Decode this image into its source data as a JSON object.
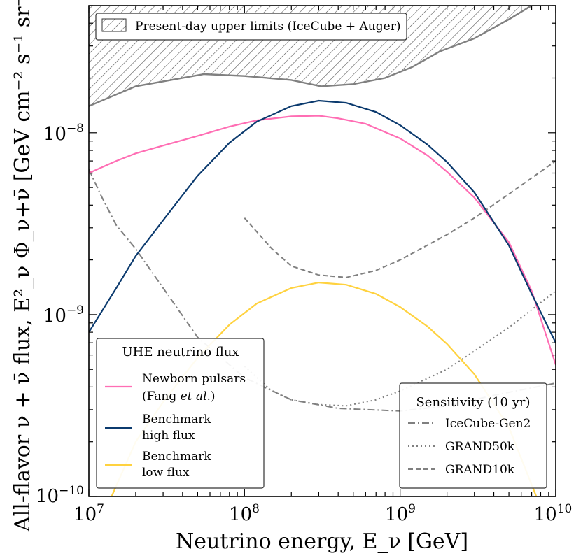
{
  "chart_data": {
    "type": "line",
    "x_scale": "log",
    "y_scale": "log",
    "xlim": [
      10000000,
      10000000000
    ],
    "ylim": [
      1e-10,
      5e-08
    ],
    "xlabel": "Neutrino energy, E_ν [GeV]",
    "ylabel": "All-flavor ν + ν̄ flux, E²_ν Φ_ν+ν̄ [GeV cm⁻² s⁻¹ sr⁻¹]",
    "x_ticks": [
      {
        "value": 10000000,
        "base": "10",
        "exp": "7"
      },
      {
        "value": 100000000,
        "base": "10",
        "exp": "8"
      },
      {
        "value": 1000000000,
        "base": "10",
        "exp": "9"
      },
      {
        "value": 10000000000,
        "base": "10",
        "exp": "10"
      }
    ],
    "y_ticks": [
      {
        "value": 1e-10,
        "base": "10",
        "exp": "−10"
      },
      {
        "value": 1e-09,
        "base": "10",
        "exp": "−9"
      },
      {
        "value": 1e-08,
        "base": "10",
        "exp": "−8"
      }
    ],
    "upper_limit_region": {
      "label": "Present-day upper limits (IceCube + Auger)",
      "color": "#808080",
      "x": [
        10000000,
        20000000,
        55000000,
        100000000,
        200000000,
        310000000,
        500000000,
        800000000,
        1200000000,
        1800000000,
        3000000000,
        5000000000,
        7000000000
      ],
      "y": [
        1.4e-08,
        1.8e-08,
        2.1e-08,
        2.05e-08,
        1.95e-08,
        1.8e-08,
        1.85e-08,
        2e-08,
        2.3e-08,
        2.8e-08,
        3.3e-08,
        4.2e-08,
        5e-08
      ]
    },
    "flux_legend_title": "UHE neutrino flux",
    "flux_series": [
      {
        "name_lines": [
          "Newborn pulsars",
          "(Fang "
        ],
        "name_italic": "et al",
        "name_tail": ".)",
        "color": "#ff6eb4",
        "x": [
          10000000,
          15000000,
          20000000,
          30000000,
          50000000,
          80000000,
          120000000,
          200000000,
          300000000,
          400000000,
          600000000,
          1000000000,
          1500000000,
          2000000000,
          3000000000,
          5000000000,
          7000000000,
          10000000000
        ],
        "y": [
          6e-09,
          7e-09,
          7.7e-09,
          8.5e-09,
          9.6e-09,
          1.08e-08,
          1.17e-08,
          1.23e-08,
          1.24e-08,
          1.2e-08,
          1.12e-08,
          9.3e-09,
          7.5e-09,
          6.1e-09,
          4.4e-09,
          2.5e-09,
          1.35e-09,
          5.3e-10
        ]
      },
      {
        "name_lines": [
          "Benchmark",
          "high flux"
        ],
        "color": "#0b3a6e",
        "x": [
          10000000,
          15000000,
          20000000,
          30000000,
          50000000,
          80000000,
          120000000,
          200000000,
          300000000,
          450000000,
          700000000,
          1000000000,
          1500000000,
          2000000000,
          3000000000,
          5000000000,
          7000000000,
          10000000000
        ],
        "y": [
          8e-10,
          1.4e-09,
          2.1e-09,
          3.3e-09,
          5.8e-09,
          8.8e-09,
          1.15e-08,
          1.4e-08,
          1.5e-08,
          1.46e-08,
          1.3e-08,
          1.1e-08,
          8.6e-09,
          6.9e-09,
          4.7e-09,
          2.4e-09,
          1.3e-09,
          7e-10
        ]
      },
      {
        "name_lines": [
          "Benchmark",
          "low flux"
        ],
        "color": "#ffd23f",
        "x": [
          14000000,
          20000000,
          30000000,
          50000000,
          80000000,
          120000000,
          200000000,
          300000000,
          450000000,
          700000000,
          1000000000,
          1500000000,
          2000000000,
          3000000000,
          5000000000,
          7500000000
        ],
        "y": [
          1e-10,
          2e-10,
          3.3e-10,
          5.8e-10,
          8.8e-10,
          1.15e-09,
          1.4e-09,
          1.5e-09,
          1.46e-09,
          1.3e-09,
          1.1e-09,
          8.6e-10,
          6.9e-10,
          4.7e-10,
          2.4e-10,
          1e-10
        ]
      }
    ],
    "sensitivity_legend_title": "Sensitivity (10 yr)",
    "sensitivity_series": [
      {
        "name": "IceCube-Gen2",
        "color": "#808080",
        "dash": "10,4,2,4",
        "x": [
          10000000,
          12000000,
          15000000,
          20000000,
          30000000,
          50000000,
          100000000,
          200000000,
          400000000,
          1000000000,
          2000000000,
          4000000000,
          10000000000
        ],
        "y": [
          6.3e-09,
          4.5e-09,
          3.1e-09,
          2.3e-09,
          1.4e-09,
          7.5e-10,
          4.5e-10,
          3.4e-10,
          3.05e-10,
          2.95e-10,
          3.15e-10,
          3.6e-10,
          4.2e-10
        ]
      },
      {
        "name": "GRAND50k",
        "color": "#808080",
        "dash": "2,4",
        "x": [
          100000000,
          150000000,
          200000000,
          300000000,
          450000000,
          700000000,
          1000000000,
          2000000000,
          3000000000,
          5000000000,
          10000000000
        ],
        "y": [
          5.2e-10,
          3.8e-10,
          3.4e-10,
          3.2e-10,
          3.15e-10,
          3.4e-10,
          3.8e-10,
          5e-10,
          6.3e-10,
          8.5e-10,
          1.35e-09
        ]
      },
      {
        "name": "GRAND10k",
        "color": "#808080",
        "dash": "7,4",
        "x": [
          100000000,
          150000000,
          200000000,
          300000000,
          450000000,
          700000000,
          1000000000,
          2000000000,
          3000000000,
          5000000000,
          10000000000
        ],
        "y": [
          3.4e-09,
          2.3e-09,
          1.85e-09,
          1.65e-09,
          1.6e-09,
          1.75e-09,
          2e-09,
          2.75e-09,
          3.4e-09,
          4.6e-09,
          7e-09
        ]
      }
    ]
  }
}
